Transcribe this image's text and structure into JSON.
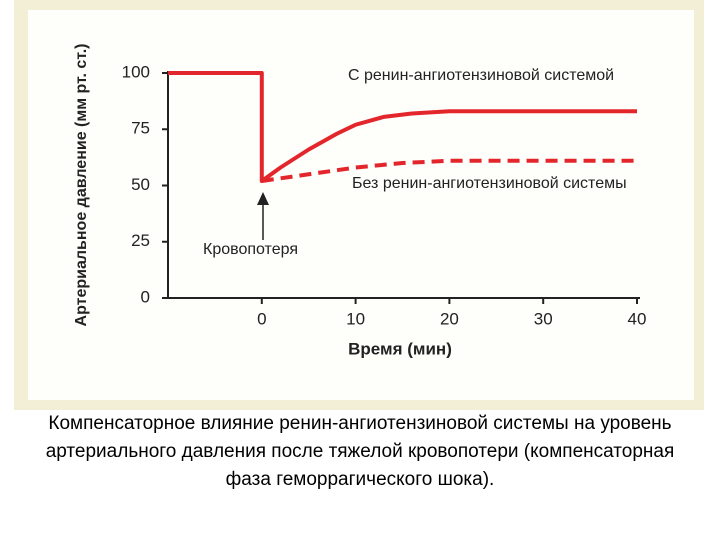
{
  "chart_data": {
    "type": "line",
    "y_label": "Артериальное давление (мм рт. ст.)",
    "x_label": "Время (мин)",
    "xlim": [
      -10,
      40
    ],
    "xticks": [
      0,
      10,
      20,
      30,
      40
    ],
    "ylim": [
      0,
      100
    ],
    "yticks": [
      0,
      25,
      50,
      75,
      100
    ],
    "series": [
      {
        "name": "С ренин-ангиотензиновой системой",
        "color": "#e3262b",
        "dash": false,
        "x": [
          -10,
          0,
          0,
          2,
          5,
          8,
          10,
          13,
          16,
          20,
          30,
          40
        ],
        "values": [
          100,
          100,
          52,
          58,
          66,
          73,
          77,
          80.5,
          82,
          83,
          83,
          83
        ]
      },
      {
        "name": "Без ренин-ангиотензиновой системы",
        "color": "#e3262b",
        "dash": true,
        "x": [
          0,
          5,
          10,
          15,
          20,
          30,
          40
        ],
        "values": [
          52,
          55,
          58,
          60,
          61,
          61,
          61
        ]
      }
    ],
    "annotation": "Кровопотеря",
    "caption": "Компенсаторное влияние ренин-ангиотензиновой системы на уровень артериального давления после тяжелой кровопотери (компенсаторная фаза геморрагического шока)."
  }
}
